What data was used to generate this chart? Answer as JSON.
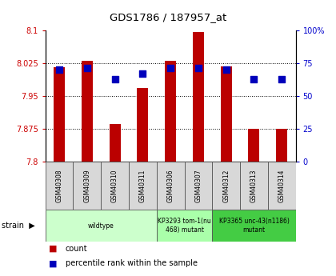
{
  "title": "GDS1786 / 187957_at",
  "samples": [
    "GSM40308",
    "GSM40309",
    "GSM40310",
    "GSM40311",
    "GSM40306",
    "GSM40307",
    "GSM40312",
    "GSM40313",
    "GSM40314"
  ],
  "count_values": [
    8.016,
    8.03,
    7.885,
    7.968,
    8.03,
    8.097,
    8.017,
    7.874,
    7.874
  ],
  "percentile_values": [
    70,
    71,
    63,
    67,
    71,
    71,
    70,
    63,
    63
  ],
  "ylim_left": [
    7.8,
    8.1
  ],
  "ylim_right": [
    0,
    100
  ],
  "yticks_left": [
    7.8,
    7.875,
    7.95,
    8.025,
    8.1
  ],
  "yticks_left_labels": [
    "7.8",
    "7.875",
    "7.95",
    "8.025",
    "8.1"
  ],
  "yticks_right": [
    0,
    25,
    50,
    75,
    100
  ],
  "yticks_right_labels": [
    "0",
    "25",
    "50",
    "75",
    "100%"
  ],
  "bar_color": "#bb0000",
  "dot_color": "#0000bb",
  "bar_width": 0.4,
  "dot_size": 28,
  "strain_groups": [
    {
      "label": "wildtype",
      "start": 0,
      "end": 4,
      "color": "#ccffcc"
    },
    {
      "label": "KP3293 tom-1(nu\n468) mutant",
      "start": 4,
      "end": 6,
      "color": "#aaffaa"
    },
    {
      "label": "KP3365 unc-43(n1186)\nmutant",
      "start": 6,
      "end": 9,
      "color": "#44cc44"
    }
  ],
  "legend_count": "count",
  "legend_percentile": "percentile rank within the sample",
  "tick_color_left": "#cc0000",
  "tick_color_right": "#0000cc"
}
